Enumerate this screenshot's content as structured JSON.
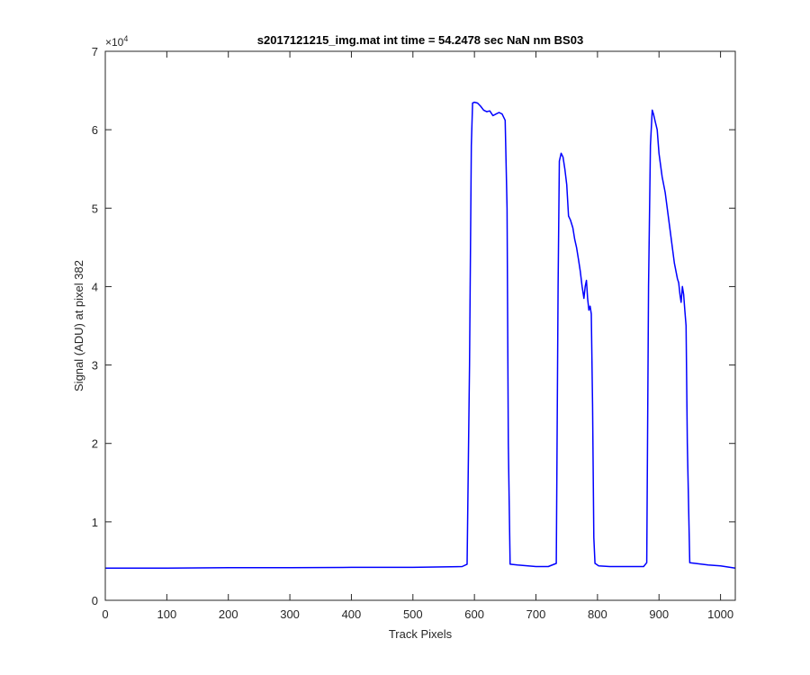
{
  "chart_data": {
    "type": "line",
    "title": "s2017121215_img.mat int time = 54.2478 sec  NaN nm BS03",
    "xlabel": "Track Pixels",
    "ylabel": "Signal (ADU) at pixel 382",
    "xlim": [
      0,
      1024
    ],
    "ylim": [
      0,
      70000
    ],
    "xticks": [
      0,
      100,
      200,
      300,
      400,
      500,
      600,
      700,
      800,
      900,
      1000
    ],
    "xtick_labels": [
      "0",
      "100",
      "200",
      "300",
      "400",
      "500",
      "600",
      "700",
      "800",
      "900",
      "1000"
    ],
    "yticks": [
      0,
      10000,
      20000,
      30000,
      40000,
      50000,
      60000,
      70000
    ],
    "ytick_labels": [
      "0",
      "1",
      "2",
      "3",
      "4",
      "5",
      "6",
      "7"
    ],
    "y_multiplier_base": "×10",
    "y_multiplier_exp": "4",
    "grid": false,
    "box": true,
    "series_color": "#0000ff",
    "series": [
      {
        "x": [
          0,
          100,
          200,
          300,
          400,
          500,
          580,
          588,
          592,
          595,
          597,
          600,
          605,
          610,
          615,
          620,
          625,
          630,
          635,
          640,
          645,
          650,
          653,
          655,
          658,
          670,
          700,
          720,
          733,
          736,
          738,
          741,
          744,
          747,
          750,
          753,
          756,
          760,
          763,
          766,
          769,
          772,
          775,
          778,
          780,
          782,
          784,
          786,
          788,
          790,
          792,
          794,
          796,
          798,
          802,
          820,
          850,
          875,
          880,
          883,
          886,
          889,
          891,
          894,
          897,
          900,
          905,
          910,
          915,
          920,
          925,
          930,
          932,
          934,
          936,
          938,
          940,
          942,
          944,
          946,
          950,
          980,
          1000,
          1024
        ],
        "y": [
          4100,
          4100,
          4150,
          4150,
          4200,
          4200,
          4300,
          4600,
          30000,
          58000,
          63400,
          63500,
          63400,
          63000,
          62500,
          62300,
          62400,
          61800,
          62000,
          62200,
          62000,
          61200,
          50000,
          20000,
          4600,
          4500,
          4300,
          4300,
          4700,
          40000,
          56000,
          57000,
          56500,
          55000,
          53000,
          49000,
          48500,
          47500,
          46000,
          45000,
          43500,
          42000,
          40000,
          38500,
          40000,
          40800,
          38500,
          37000,
          37500,
          36500,
          25000,
          8000,
          4700,
          4600,
          4400,
          4300,
          4300,
          4300,
          4800,
          40000,
          58000,
          62500,
          62000,
          61000,
          60000,
          57000,
          54000,
          52000,
          49000,
          46000,
          43000,
          41000,
          40500,
          39000,
          38000,
          40000,
          39000,
          37000,
          35000,
          20000,
          4800,
          4500,
          4400,
          4100
        ]
      }
    ]
  }
}
